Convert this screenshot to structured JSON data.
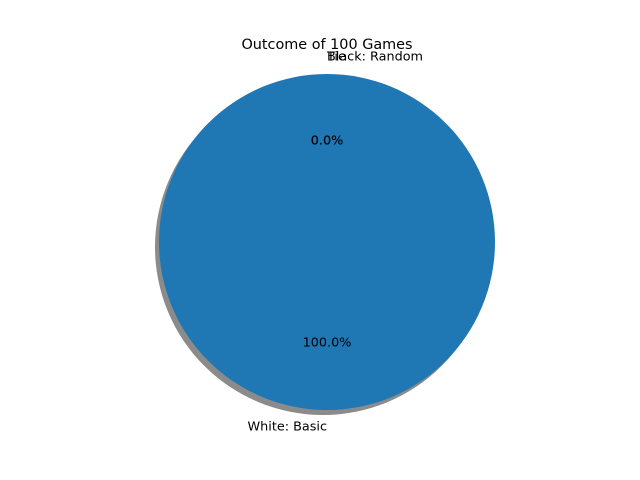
{
  "chart_data": {
    "type": "pie",
    "title": "Outcome of 100 Games",
    "slices": [
      {
        "label": "White: Basic",
        "value": 100,
        "percent_label": "100.0%",
        "color": "#1f77b4"
      },
      {
        "label": "Black: Random",
        "value": 0,
        "percent_label": "0.0%",
        "color": "#ff7f0e"
      },
      {
        "label": "Tie",
        "value": 0,
        "percent_label": "0.0%",
        "color": "#2ca02c"
      }
    ],
    "shadow": true,
    "shadow_color": "#4d4d4d",
    "start_angle_deg": 90,
    "legend": "none"
  }
}
